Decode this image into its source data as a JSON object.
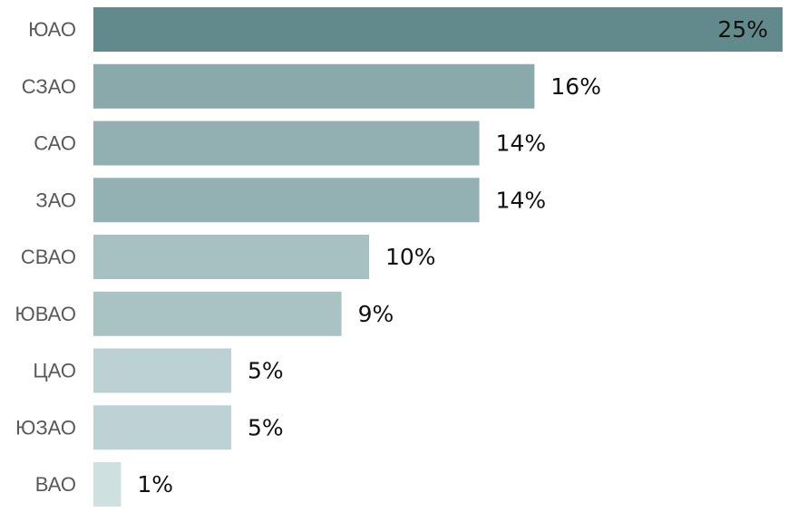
{
  "chart_data": {
    "type": "bar",
    "orientation": "horizontal",
    "categories": [
      "ЮАО",
      "СЗАО",
      "САО",
      "ЗАО",
      "СВАО",
      "ЮВАО",
      "ЦАО",
      "ЮЗАО",
      "ВАО"
    ],
    "values": [
      25,
      16,
      14,
      14,
      10,
      9,
      5,
      5,
      1
    ],
    "value_labels": [
      "25%",
      "16%",
      "14%",
      "14%",
      "10%",
      "9%",
      "5%",
      "5%",
      "1%"
    ],
    "bar_colors": [
      "#62898b",
      "#89a9ab",
      "#92afb1",
      "#93b0b2",
      "#a7c0c2",
      "#a9c2c4",
      "#bbd1d3",
      "#bdd2d4",
      "#cfe0e1"
    ],
    "xlim": [
      0,
      25
    ],
    "title": "",
    "xlabel": "",
    "ylabel": "",
    "grid": false,
    "legend": "none"
  }
}
